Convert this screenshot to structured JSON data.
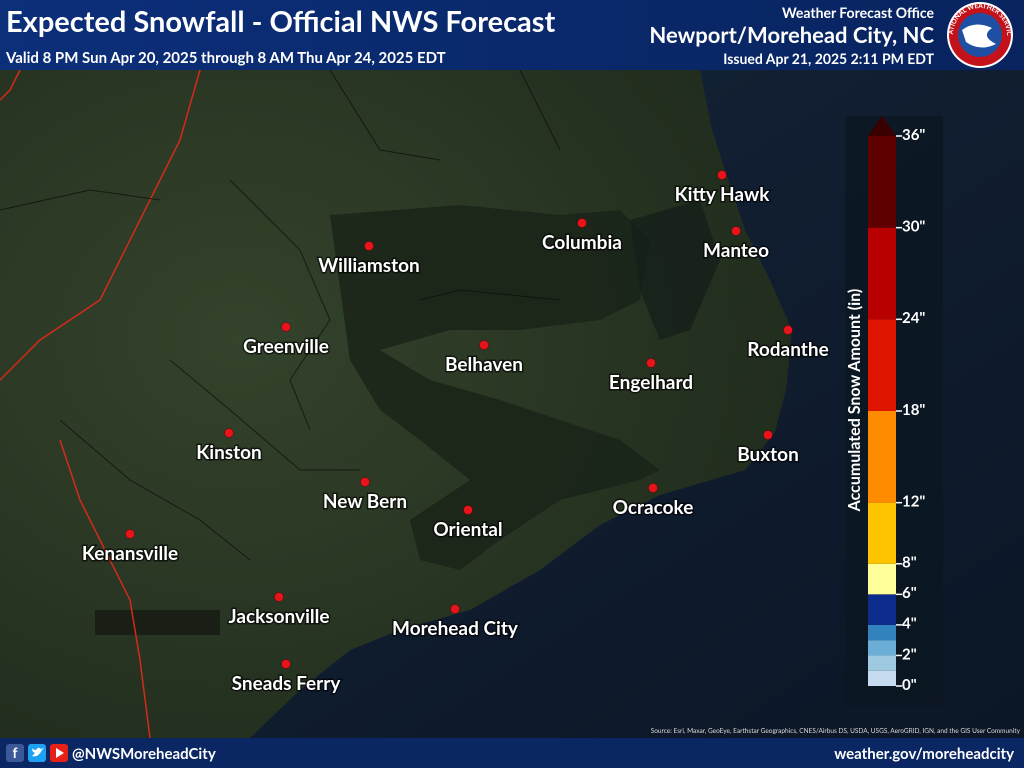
{
  "header": {
    "title": "Expected Snowfall - Official NWS Forecast",
    "valid": "Valid 8 PM Sun Apr 20, 2025 through 8 AM Thu Apr 24, 2025 EDT",
    "office_label": "Weather Forecast Office",
    "office_name": "Newport/Morehead City, NC",
    "issued": "Issued Apr 21, 2025 2:11 PM EDT",
    "logo_text": "NATIONAL WEATHER SERVICE"
  },
  "map": {
    "cities": [
      "Kitty Hawk",
      "Columbia",
      "Williamston",
      "Manteo",
      "Greenville",
      "Belhaven",
      "Rodanthe",
      "Engelhard",
      "Kinston",
      "Buxton",
      "New Bern",
      "Oriental",
      "Ocracoke",
      "Kenansville",
      "Jacksonville",
      "Morehead City",
      "Sneads Ferry"
    ],
    "source": "Source: Esri, Maxar, GeoEye, Earthstar Geographics, CNES/Airbus DS, USDA, USGS, AeroGRID, IGN, and the GIS User Community"
  },
  "legend": {
    "title": "Accumulated Snow Amount (in)",
    "lim": [
      0,
      36
    ],
    "ticks": [
      {
        "value": 0,
        "label": "0\""
      },
      {
        "value": 2,
        "label": "2\""
      },
      {
        "value": 4,
        "label": "4\""
      },
      {
        "value": 6,
        "label": "6\""
      },
      {
        "value": 8,
        "label": "8\""
      },
      {
        "value": 12,
        "label": "12\""
      },
      {
        "value": 18,
        "label": "18\""
      },
      {
        "value": 24,
        "label": "24\""
      },
      {
        "value": 30,
        "label": "30\""
      },
      {
        "value": 36,
        "label": "36\""
      }
    ],
    "bins": [
      0,
      1,
      2,
      3,
      4,
      6,
      8,
      12,
      18,
      24,
      30,
      36
    ],
    "colors": [
      "#c6dbef",
      "#9ecae1",
      "#6baed6",
      "#3182bd",
      "#0c2c8c",
      "#ffff99",
      "#ffc400",
      "#ff8c00",
      "#e01500",
      "#b80000",
      "#5e0000"
    ],
    "over_color": "#3a0000"
  },
  "footer": {
    "handle": "@NWSMoreheadCity",
    "website": "weather.gov/moreheadcity"
  }
}
